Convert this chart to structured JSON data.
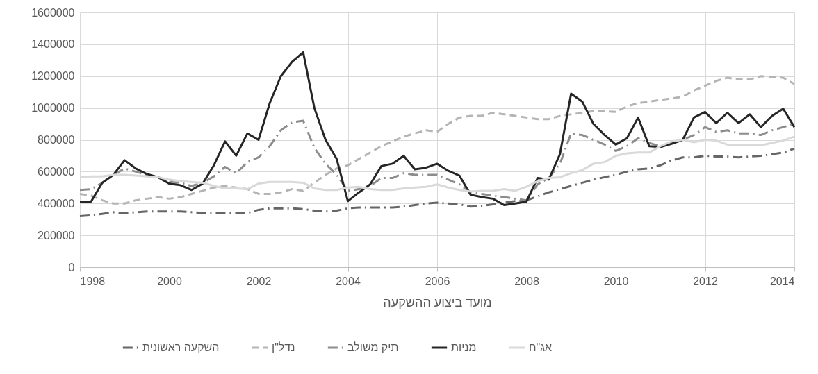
{
  "chart_data": {
    "type": "line",
    "xlabel": "מועד ביצוע ההשקעה",
    "xlim": [
      1998,
      2014
    ],
    "xticks": [
      1998,
      2000,
      2002,
      2004,
      2006,
      2008,
      2010,
      2012,
      2014
    ],
    "ylim": [
      0,
      1600000
    ],
    "yticks": [
      0,
      200000,
      400000,
      600000,
      800000,
      1000000,
      1200000,
      1400000,
      1600000
    ],
    "grid": true,
    "legend": "bottom",
    "x": [
      1998,
      1998.25,
      1998.5,
      1998.75,
      1999,
      1999.25,
      1999.5,
      1999.75,
      2000,
      2000.25,
      2000.5,
      2000.75,
      2001,
      2001.25,
      2001.5,
      2001.75,
      2002,
      2002.25,
      2002.5,
      2002.75,
      2003,
      2003.25,
      2003.5,
      2003.75,
      2004,
      2004.25,
      2004.5,
      2004.75,
      2005,
      2005.25,
      2005.5,
      2005.75,
      2006,
      2006.25,
      2006.5,
      2006.75,
      2007,
      2007.25,
      2007.5,
      2007.75,
      2008,
      2008.25,
      2008.5,
      2008.75,
      2009,
      2009.25,
      2009.5,
      2009.75,
      2010,
      2010.25,
      2010.5,
      2010.75,
      2011,
      2011.25,
      2011.5,
      2011.75,
      2012,
      2012.25,
      2012.5,
      2012.75,
      2013,
      2013.25,
      2013.5,
      2013.75,
      2014
    ],
    "series": [
      {
        "name": "השקעה ראשונית",
        "color": "#666666",
        "line_style": "dashdot",
        "values": [
          320000,
          325000,
          335000,
          345000,
          340000,
          345000,
          350000,
          350000,
          350000,
          350000,
          345000,
          340000,
          340000,
          340000,
          340000,
          340000,
          360000,
          370000,
          370000,
          370000,
          365000,
          355000,
          350000,
          355000,
          370000,
          375000,
          375000,
          375000,
          375000,
          380000,
          390000,
          400000,
          405000,
          400000,
          395000,
          380000,
          385000,
          395000,
          405000,
          415000,
          420000,
          445000,
          470000,
          490000,
          510000,
          530000,
          550000,
          565000,
          580000,
          600000,
          615000,
          620000,
          640000,
          670000,
          690000,
          690000,
          700000,
          695000,
          695000,
          690000,
          695000,
          700000,
          710000,
          720000,
          745000
        ]
      },
      {
        "name": "נדל\"ן",
        "color": "#b4b4b4",
        "line_style": "dashed",
        "values": [
          460000,
          450000,
          420000,
          400000,
          400000,
          420000,
          430000,
          440000,
          430000,
          440000,
          460000,
          480000,
          500000,
          510000,
          500000,
          490000,
          460000,
          460000,
          470000,
          490000,
          480000,
          530000,
          580000,
          620000,
          640000,
          680000,
          720000,
          760000,
          790000,
          820000,
          840000,
          860000,
          850000,
          900000,
          940000,
          950000,
          950000,
          970000,
          960000,
          950000,
          940000,
          930000,
          930000,
          950000,
          960000,
          970000,
          980000,
          980000,
          975000,
          1010000,
          1030000,
          1040000,
          1050000,
          1060000,
          1070000,
          1110000,
          1140000,
          1170000,
          1190000,
          1180000,
          1180000,
          1200000,
          1195000,
          1190000,
          1150000
        ]
      },
      {
        "name": "תיק משולב",
        "color": "#8c8c8c",
        "line_style": "dashdot",
        "values": [
          485000,
          490000,
          530000,
          580000,
          620000,
          600000,
          580000,
          565000,
          540000,
          530000,
          510000,
          530000,
          570000,
          630000,
          590000,
          660000,
          690000,
          760000,
          860000,
          910000,
          920000,
          750000,
          650000,
          580000,
          480000,
          490000,
          510000,
          560000,
          560000,
          590000,
          580000,
          580000,
          580000,
          550000,
          520000,
          470000,
          460000,
          450000,
          440000,
          430000,
          420000,
          520000,
          560000,
          650000,
          840000,
          830000,
          800000,
          770000,
          730000,
          760000,
          810000,
          780000,
          760000,
          780000,
          800000,
          830000,
          880000,
          850000,
          860000,
          840000,
          840000,
          830000,
          860000,
          880000,
          900000
        ]
      },
      {
        "name": "מניות",
        "color": "#262626",
        "line_style": "solid",
        "values": [
          412000,
          412000,
          530000,
          580000,
          672000,
          620000,
          585000,
          565000,
          525000,
          515000,
          485000,
          525000,
          640000,
          790000,
          700000,
          840000,
          800000,
          1030000,
          1200000,
          1290000,
          1350000,
          1000000,
          800000,
          680000,
          415000,
          470000,
          520000,
          635000,
          650000,
          700000,
          615000,
          625000,
          650000,
          605000,
          575000,
          455000,
          440000,
          430000,
          390000,
          400000,
          412000,
          560000,
          550000,
          710000,
          1090000,
          1040000,
          900000,
          830000,
          770000,
          810000,
          940000,
          760000,
          755000,
          775000,
          800000,
          940000,
          975000,
          905000,
          970000,
          905000,
          960000,
          880000,
          950000,
          995000,
          880000
        ]
      },
      {
        "name": "אג\"ח",
        "color": "#d9d9d9",
        "line_style": "solid",
        "values": [
          565000,
          570000,
          570000,
          580000,
          580000,
          575000,
          570000,
          565000,
          550000,
          540000,
          535000,
          530000,
          510000,
          495000,
          495000,
          490000,
          525000,
          535000,
          535000,
          535000,
          530000,
          495000,
          485000,
          485000,
          500000,
          505000,
          490000,
          485000,
          485000,
          495000,
          500000,
          505000,
          520000,
          500000,
          485000,
          475000,
          480000,
          480000,
          490000,
          480000,
          505000,
          540000,
          560000,
          565000,
          590000,
          610000,
          650000,
          660000,
          700000,
          715000,
          720000,
          720000,
          760000,
          790000,
          800000,
          785000,
          800000,
          795000,
          770000,
          770000,
          770000,
          765000,
          780000,
          795000,
          820000
        ]
      }
    ]
  }
}
